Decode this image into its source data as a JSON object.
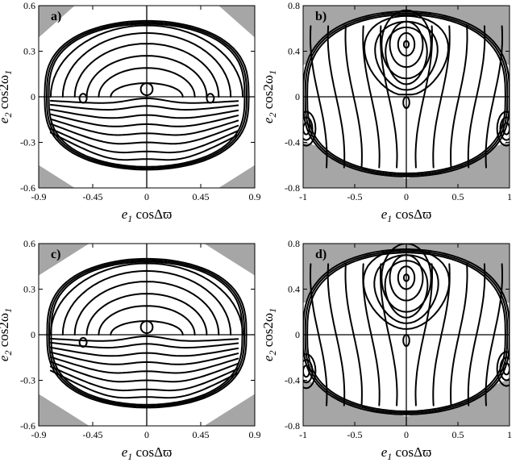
{
  "figure": {
    "x_label_main": "e",
    "x_label_sub": "1",
    "x_label_rest": " cosΔϖ",
    "y_label_main": "e",
    "y_label_sub": "2",
    "y_label_rest": " cos2ω",
    "y_label_rest_sub": "1"
  },
  "chart_data": [
    {
      "type": "line",
      "panel": "a)",
      "xlim": [
        -0.9,
        0.9
      ],
      "ylim": [
        -0.6,
        0.6
      ],
      "xticks": [
        "-0.9",
        "-0.45",
        "0",
        "0.45",
        "0.9"
      ],
      "xtick_values": [
        -0.9,
        -0.45,
        0,
        0.45,
        0.9
      ],
      "yticks": [
        "-0.6",
        "-0.3",
        "0",
        "0.3",
        "0.6"
      ],
      "ytick_values": [
        -0.6,
        -0.3,
        0,
        0.3,
        0.6
      ],
      "forbidden_region_color": "#a6a6a6",
      "boundary": {
        "rx": 0.85,
        "top": 0.5,
        "bottom": -0.48
      },
      "shaded_corners": [
        [
          [
            -0.9,
            0.6
          ],
          [
            -0.6,
            0.6
          ],
          [
            -0.9,
            0.39
          ]
        ],
        [
          [
            0.9,
            0.6
          ],
          [
            0.6,
            0.6
          ],
          [
            0.9,
            0.39
          ]
        ],
        [
          [
            -0.9,
            -0.6
          ],
          [
            -0.6,
            -0.6
          ],
          [
            -0.9,
            -0.45
          ]
        ],
        [
          [
            0.9,
            -0.6
          ],
          [
            0.6,
            -0.6
          ],
          [
            0.9,
            -0.45
          ]
        ]
      ],
      "arches_upper": [
        0.55,
        0.45,
        0.35,
        0.25,
        0.15,
        0.05
      ],
      "arch_center_x": 0,
      "arch_peak_y": [
        0.47,
        0.42,
        0.35,
        0.27,
        0.19,
        0.09
      ],
      "small_loops": [
        {
          "x": -0.53,
          "y": -0.01
        },
        {
          "x": 0.53,
          "y": -0.01
        }
      ],
      "lower_curves_y": [
        -0.05,
        -0.1,
        -0.16,
        -0.22,
        -0.28,
        -0.34,
        -0.4,
        -0.45
      ],
      "saddle_center": [
        0,
        0.05
      ]
    },
    {
      "type": "line",
      "panel": "b)",
      "xlim": [
        -1,
        1
      ],
      "ylim": [
        -0.8,
        0.8
      ],
      "xticks": [
        "-1",
        "-0.5",
        "0",
        "0.5",
        "1"
      ],
      "xtick_values": [
        -1,
        -0.5,
        0,
        0.5,
        1
      ],
      "yticks": [
        "-0.8",
        "-0.4",
        "0",
        "0.4",
        "0.8"
      ],
      "ytick_values": [
        -0.8,
        -0.4,
        0,
        0.4,
        0.8
      ],
      "forbidden_region_color": "#a6a6a6",
      "boundary": {
        "rx": 1.0,
        "top": 0.75,
        "bottom": -0.7
      },
      "upper_island_center": [
        0,
        0.46
      ],
      "upper_island_radii": [
        0.03,
        0.1,
        0.2,
        0.3
      ],
      "lower_island_centers": [
        [
          -0.97,
          -0.28
        ],
        [
          0.97,
          -0.28
        ]
      ],
      "central_lower_loop": [
        0,
        -0.05
      ]
    },
    {
      "type": "line",
      "panel": "c)",
      "xlim": [
        -0.9,
        0.9
      ],
      "ylim": [
        -0.6,
        0.6
      ],
      "xticks": [
        "-0.9",
        "-0.45",
        "0",
        "0.45",
        "0.9"
      ],
      "xtick_values": [
        -0.9,
        -0.45,
        0,
        0.45,
        0.9
      ],
      "yticks": [
        "-0.6",
        "-0.3",
        "0",
        "0.3",
        "0.6"
      ],
      "ytick_values": [
        -0.6,
        -0.3,
        0,
        0.3,
        0.6
      ],
      "forbidden_region_color": "#a6a6a6",
      "boundary": {
        "rx": 0.83,
        "top": 0.5,
        "bottom": -0.48
      },
      "shaded_corners": [
        [
          [
            -0.9,
            0.6
          ],
          [
            -0.48,
            0.6
          ],
          [
            -0.9,
            0.39
          ]
        ],
        [
          [
            0.9,
            0.6
          ],
          [
            0.48,
            0.6
          ],
          [
            0.9,
            0.39
          ]
        ],
        [
          [
            -0.9,
            -0.6
          ],
          [
            -0.48,
            -0.6
          ],
          [
            -0.9,
            -0.39
          ]
        ],
        [
          [
            0.9,
            -0.6
          ],
          [
            0.48,
            -0.6
          ],
          [
            0.9,
            -0.39
          ]
        ]
      ],
      "arches_upper": [
        0.55,
        0.45,
        0.35,
        0.25,
        0.15,
        0.05
      ],
      "arch_center_x": 0,
      "arch_peak_y": [
        0.47,
        0.42,
        0.35,
        0.27,
        0.19,
        0.09
      ],
      "small_loops": [
        {
          "x": -0.53,
          "y": -0.05
        }
      ],
      "lower_curves_y": [
        -0.05,
        -0.1,
        -0.16,
        -0.22,
        -0.28,
        -0.34,
        -0.4,
        -0.45
      ],
      "saddle_center": [
        0,
        0.05
      ]
    },
    {
      "type": "line",
      "panel": "d)",
      "xlim": [
        -1,
        1
      ],
      "ylim": [
        -0.8,
        0.8
      ],
      "xticks": [
        "-1",
        "-0.5",
        "0",
        "0.5",
        "1"
      ],
      "xtick_values": [
        -1,
        -0.5,
        0,
        0.5,
        1
      ],
      "yticks": [
        "-0.8",
        "-0.4",
        "0",
        "0.4",
        "0.8"
      ],
      "ytick_values": [
        -0.8,
        -0.4,
        0,
        0.4,
        0.8
      ],
      "forbidden_region_color": "#a6a6a6",
      "boundary": {
        "rx": 1.0,
        "top": 0.75,
        "bottom": -0.7
      },
      "upper_island_center": [
        0,
        0.5
      ],
      "upper_island_radii": [
        0.03,
        0.1,
        0.2,
        0.3
      ],
      "lower_island_centers": [
        [
          -0.97,
          -0.32
        ],
        [
          0.97,
          -0.3
        ]
      ],
      "central_lower_loop": [
        0,
        -0.05
      ]
    }
  ]
}
